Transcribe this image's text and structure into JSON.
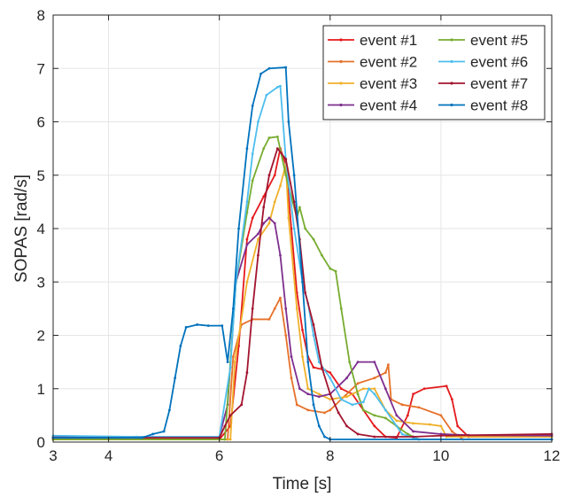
{
  "chart_data": {
    "type": "line",
    "xlabel": "Time [s]",
    "ylabel": "SOPAS [rad/s]",
    "xlim": [
      3,
      12
    ],
    "ylim": [
      0,
      8
    ],
    "xticks": [
      "3",
      "4",
      "6",
      "8",
      "10",
      "12"
    ],
    "yticks": [
      "0",
      "1",
      "2",
      "3",
      "4",
      "5",
      "6",
      "7",
      "8"
    ],
    "grid": true,
    "legend_position": "top-right",
    "series": [
      {
        "name": "event #1",
        "color": "#e41a1c",
        "points": [
          [
            3,
            0.05
          ],
          [
            6,
            0.05
          ],
          [
            6.2,
            0.3
          ],
          [
            6.35,
            1.8
          ],
          [
            6.5,
            3.8
          ],
          [
            6.6,
            4.2
          ],
          [
            6.8,
            4.6
          ],
          [
            7.0,
            5.0
          ],
          [
            7.1,
            5.5
          ],
          [
            7.2,
            5.2
          ],
          [
            7.3,
            4.0
          ],
          [
            7.4,
            2.8
          ],
          [
            7.5,
            2.1
          ],
          [
            7.6,
            1.6
          ],
          [
            7.7,
            1.4
          ],
          [
            7.9,
            1.35
          ],
          [
            8.0,
            1.3
          ],
          [
            8.2,
            1.0
          ],
          [
            8.4,
            0.9
          ],
          [
            8.6,
            0.6
          ],
          [
            8.8,
            0.3
          ],
          [
            9.0,
            0.1
          ],
          [
            9.2,
            0.08
          ],
          [
            9.4,
            0.5
          ],
          [
            9.5,
            0.9
          ],
          [
            9.7,
            1.0
          ],
          [
            10.1,
            1.05
          ],
          [
            10.2,
            0.8
          ],
          [
            10.3,
            0.3
          ],
          [
            10.5,
            0.1
          ],
          [
            12,
            0.1
          ]
        ]
      },
      {
        "name": "event #2",
        "color": "#e6712a",
        "points": [
          [
            3,
            0.05
          ],
          [
            6.15,
            0.05
          ],
          [
            6.25,
            1.6
          ],
          [
            6.4,
            2.2
          ],
          [
            6.6,
            2.3
          ],
          [
            6.9,
            2.3
          ],
          [
            7.0,
            2.5
          ],
          [
            7.1,
            2.7
          ],
          [
            7.2,
            2.0
          ],
          [
            7.3,
            1.2
          ],
          [
            7.4,
            0.7
          ],
          [
            7.6,
            0.6
          ],
          [
            7.9,
            0.55
          ],
          [
            8.0,
            0.6
          ],
          [
            8.2,
            0.8
          ],
          [
            8.5,
            1.1
          ],
          [
            8.8,
            1.2
          ],
          [
            9.0,
            1.3
          ],
          [
            9.05,
            1.45
          ],
          [
            9.1,
            0.8
          ],
          [
            9.3,
            0.7
          ],
          [
            9.6,
            0.65
          ],
          [
            10.0,
            0.5
          ],
          [
            10.2,
            0.2
          ],
          [
            10.4,
            0.05
          ],
          [
            12,
            0.05
          ]
        ]
      },
      {
        "name": "event #3",
        "color": "#f0b029",
        "points": [
          [
            3,
            0.05
          ],
          [
            6.2,
            0.05
          ],
          [
            6.28,
            1.5
          ],
          [
            6.5,
            3.0
          ],
          [
            6.7,
            3.8
          ],
          [
            6.9,
            4.1
          ],
          [
            7.0,
            4.5
          ],
          [
            7.1,
            4.8
          ],
          [
            7.2,
            5.2
          ],
          [
            7.25,
            4.2
          ],
          [
            7.4,
            2.5
          ],
          [
            7.5,
            1.6
          ],
          [
            7.6,
            1.0
          ],
          [
            7.8,
            0.9
          ],
          [
            8.0,
            0.8
          ],
          [
            8.3,
            0.85
          ],
          [
            8.6,
            1.0
          ],
          [
            8.8,
            1.0
          ],
          [
            9.0,
            0.6
          ],
          [
            9.2,
            0.4
          ],
          [
            9.5,
            0.35
          ],
          [
            9.8,
            0.33
          ],
          [
            10.0,
            0.3
          ],
          [
            10.1,
            0.1
          ],
          [
            12,
            0.1
          ]
        ]
      },
      {
        "name": "event #4",
        "color": "#7e2f8e",
        "points": [
          [
            3,
            0.1
          ],
          [
            6,
            0.1
          ],
          [
            6.15,
            0.7
          ],
          [
            6.3,
            3.0
          ],
          [
            6.5,
            3.7
          ],
          [
            6.7,
            3.9
          ],
          [
            6.8,
            4.1
          ],
          [
            6.9,
            4.2
          ],
          [
            7.0,
            4.1
          ],
          [
            7.1,
            3.5
          ],
          [
            7.2,
            2.5
          ],
          [
            7.3,
            1.6
          ],
          [
            7.45,
            1.0
          ],
          [
            7.6,
            0.9
          ],
          [
            7.8,
            0.85
          ],
          [
            8.0,
            0.9
          ],
          [
            8.3,
            1.2
          ],
          [
            8.5,
            1.5
          ],
          [
            8.8,
            1.5
          ],
          [
            9.0,
            1.0
          ],
          [
            9.2,
            0.5
          ],
          [
            9.5,
            0.2
          ],
          [
            10.0,
            0.15
          ],
          [
            10.5,
            0.13
          ],
          [
            12,
            0.12
          ]
        ]
      },
      {
        "name": "event #5",
        "color": "#77ac30",
        "points": [
          [
            3,
            0.05
          ],
          [
            6.1,
            0.05
          ],
          [
            6.2,
            1.5
          ],
          [
            6.3,
            3.0
          ],
          [
            6.5,
            4.3
          ],
          [
            6.6,
            4.9
          ],
          [
            6.8,
            5.5
          ],
          [
            6.9,
            5.7
          ],
          [
            7.05,
            5.72
          ],
          [
            7.2,
            5.0
          ],
          [
            7.3,
            4.6
          ],
          [
            7.4,
            4.2
          ],
          [
            7.45,
            4.4
          ],
          [
            7.55,
            4.0
          ],
          [
            7.7,
            3.8
          ],
          [
            7.85,
            3.5
          ],
          [
            8.0,
            3.25
          ],
          [
            8.1,
            3.2
          ],
          [
            8.2,
            2.5
          ],
          [
            8.35,
            1.5
          ],
          [
            8.5,
            0.9
          ],
          [
            8.6,
            0.6
          ],
          [
            8.8,
            0.5
          ],
          [
            9.0,
            0.45
          ],
          [
            9.2,
            0.3
          ],
          [
            9.4,
            0.15
          ],
          [
            9.6,
            0.05
          ],
          [
            12,
            0.05
          ]
        ]
      },
      {
        "name": "event #6",
        "color": "#4dbeee",
        "points": [
          [
            3,
            0.12
          ],
          [
            4.5,
            0.1
          ],
          [
            6.0,
            0.1
          ],
          [
            6.2,
            1.4
          ],
          [
            6.3,
            3.0
          ],
          [
            6.5,
            4.5
          ],
          [
            6.6,
            5.4
          ],
          [
            6.7,
            6.0
          ],
          [
            6.85,
            6.5
          ],
          [
            7.05,
            6.65
          ],
          [
            7.1,
            6.67
          ],
          [
            7.2,
            5.3
          ],
          [
            7.35,
            4.0
          ],
          [
            7.5,
            3.0
          ],
          [
            7.6,
            2.6
          ],
          [
            7.7,
            2.0
          ],
          [
            7.8,
            1.5
          ],
          [
            8.0,
            1.2
          ],
          [
            8.2,
            0.8
          ],
          [
            8.4,
            0.7
          ],
          [
            8.6,
            0.75
          ],
          [
            8.7,
            1.0
          ],
          [
            8.8,
            0.9
          ],
          [
            9.0,
            0.6
          ],
          [
            9.3,
            0.15
          ],
          [
            9.6,
            0.05
          ],
          [
            12,
            0.05
          ]
        ]
      },
      {
        "name": "event #7",
        "color": "#a2142f",
        "points": [
          [
            3,
            0.08
          ],
          [
            6,
            0.08
          ],
          [
            6.1,
            0.3
          ],
          [
            6.2,
            0.5
          ],
          [
            6.4,
            0.7
          ],
          [
            6.5,
            1.3
          ],
          [
            6.6,
            2.5
          ],
          [
            6.7,
            3.5
          ],
          [
            6.8,
            4.4
          ],
          [
            6.9,
            5.0
          ],
          [
            7.05,
            5.5
          ],
          [
            7.2,
            5.3
          ],
          [
            7.35,
            4.5
          ],
          [
            7.45,
            3.8
          ],
          [
            7.55,
            2.8
          ],
          [
            7.7,
            2.2
          ],
          [
            7.85,
            1.4
          ],
          [
            8.0,
            0.9
          ],
          [
            8.15,
            0.55
          ],
          [
            8.3,
            0.3
          ],
          [
            8.5,
            0.15
          ],
          [
            8.8,
            0.1
          ],
          [
            9.5,
            0.1
          ],
          [
            10.0,
            0.12
          ],
          [
            12,
            0.15
          ]
        ]
      },
      {
        "name": "event #8",
        "color": "#0072bd",
        "points": [
          [
            3,
            0.08
          ],
          [
            4.6,
            0.08
          ],
          [
            4.8,
            0.15
          ],
          [
            5.0,
            0.2
          ],
          [
            5.1,
            0.6
          ],
          [
            5.2,
            1.2
          ],
          [
            5.3,
            1.8
          ],
          [
            5.4,
            2.15
          ],
          [
            5.6,
            2.2
          ],
          [
            5.8,
            2.18
          ],
          [
            6.05,
            2.18
          ],
          [
            6.15,
            1.5
          ],
          [
            6.25,
            2.5
          ],
          [
            6.35,
            4.0
          ],
          [
            6.5,
            5.5
          ],
          [
            6.6,
            6.3
          ],
          [
            6.75,
            6.9
          ],
          [
            6.9,
            7.0
          ],
          [
            7.2,
            7.02
          ],
          [
            7.25,
            6.0
          ],
          [
            7.35,
            5.0
          ],
          [
            7.5,
            3.0
          ],
          [
            7.6,
            1.5
          ],
          [
            7.7,
            0.7
          ],
          [
            7.8,
            0.3
          ],
          [
            7.9,
            0.1
          ],
          [
            8.0,
            0.05
          ],
          [
            12,
            0.05
          ]
        ]
      }
    ]
  }
}
